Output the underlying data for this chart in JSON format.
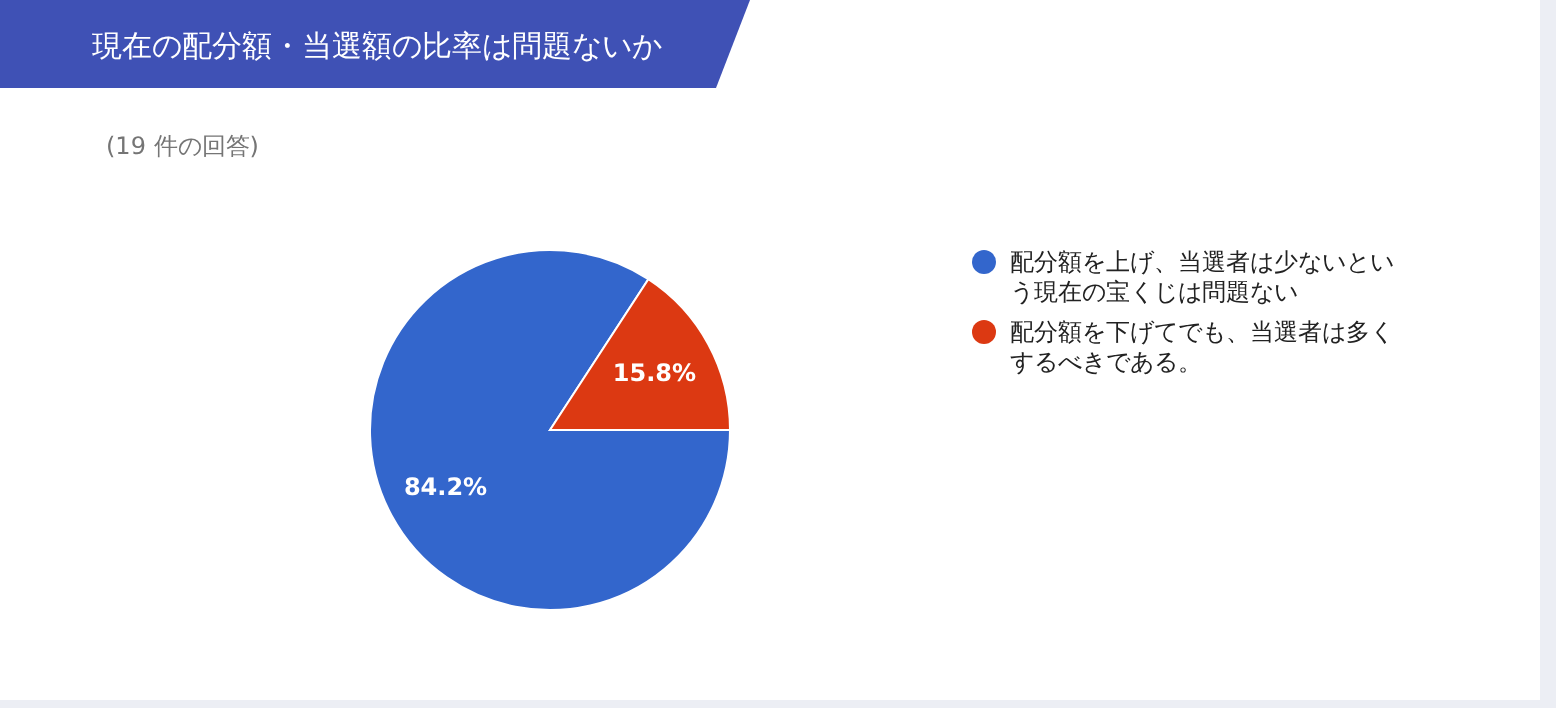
{
  "chart_data": {
    "type": "pie",
    "title": "現在の配分額・当選額の比率は問題ないか",
    "subtitle": "(19 件の回答)",
    "categories": [
      "配分額を上げ、当選者は少ないという現在の宝くじは問題ない",
      "配分額を下げてでも、当選者は多くするべきである。"
    ],
    "values": [
      84.2,
      15.8
    ],
    "colors": [
      "#3366cc",
      "#dc3912"
    ],
    "value_labels": [
      "84.2%",
      "15.8%"
    ],
    "legend": "right"
  }
}
